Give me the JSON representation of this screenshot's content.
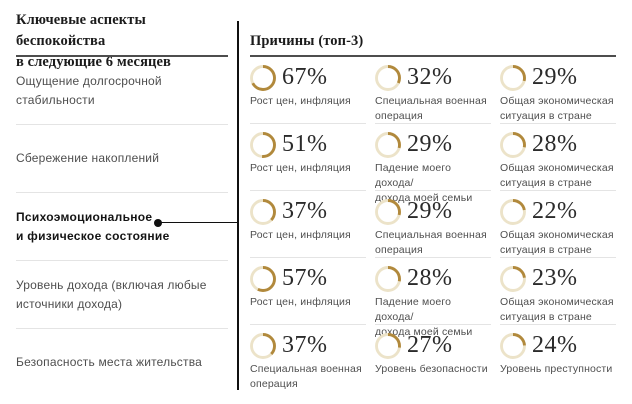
{
  "left_panel": {
    "title": "Ключевые аспекты беспокойства\nв следующие 6 месяцев"
  },
  "right_panel": {
    "title": "Причины (топ-3)"
  },
  "colors": {
    "donut_track": "#ece3c9",
    "donut_arc": "#b1893c",
    "header_rule": "#4d4d4d",
    "divider": "#101010",
    "separator": "#e4e4e4"
  },
  "chart_data": {
    "type": "table",
    "title": "Ключевые аспекты беспокойства в следующие 6 месяцев",
    "subtitle": "Причины (топ-3)",
    "unit": "%",
    "aspects": [
      {
        "label": "Ощущение долгосрочной стабильности",
        "highlighted": false,
        "reasons": [
          {
            "value": 67,
            "label": "Рост цен, инфляция"
          },
          {
            "value": 32,
            "label": "Специальная военная\nоперация"
          },
          {
            "value": 29,
            "label": "Общая экономическая\nситуация в стране"
          }
        ]
      },
      {
        "label": "Сбережение накоплений",
        "highlighted": false,
        "reasons": [
          {
            "value": 51,
            "label": "Рост цен, инфляция"
          },
          {
            "value": 29,
            "label": "Падение моего дохода/\nдохода моей семьи"
          },
          {
            "value": 28,
            "label": "Общая экономическая\nситуация в стране"
          }
        ]
      },
      {
        "label": "Психоэмоциональное\nи физическое состояние",
        "highlighted": true,
        "reasons": [
          {
            "value": 37,
            "label": "Рост цен, инфляция"
          },
          {
            "value": 29,
            "label": "Специальная военная\nоперация"
          },
          {
            "value": 22,
            "label": "Общая экономическая\nситуация в стране"
          }
        ]
      },
      {
        "label": "Уровень дохода (включая любые\nисточники дохода)",
        "highlighted": false,
        "reasons": [
          {
            "value": 57,
            "label": "Рост цен, инфляция"
          },
          {
            "value": 28,
            "label": "Падение моего дохода/\nдохода моей семьи"
          },
          {
            "value": 23,
            "label": "Общая экономическая\nситуация в стране"
          }
        ]
      },
      {
        "label": "Безопасность места жительства",
        "highlighted": false,
        "reasons": [
          {
            "value": 37,
            "label": "Специальная военная\nоперация"
          },
          {
            "value": 27,
            "label": "Уровень безопасности"
          },
          {
            "value": 24,
            "label": "Уровень преступности"
          }
        ]
      }
    ]
  }
}
